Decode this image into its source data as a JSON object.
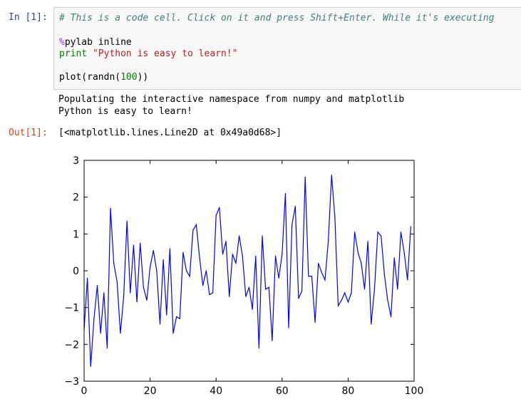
{
  "cell": {
    "in_prompt": "In [1]:",
    "code": {
      "comment": "# This is a code cell. Click on it and press Shift+Enter. While it's executing",
      "magic_percent": "%",
      "magic_rest": "pylab inline",
      "print_kw": "print",
      "print_str": "\"Python is easy to learn!\"",
      "plot_prefix": "plot(randn(",
      "plot_arg": "100",
      "plot_suffix": "))"
    },
    "stdout": [
      "Populating the interactive namespace from numpy and matplotlib",
      "Python is easy to learn!"
    ],
    "out_prompt": "Out[1]:",
    "out_repr": "[<matplotlib.lines.Line2D at 0x49a0d68>]"
  },
  "line_color": "#0000ff",
  "chart_data": {
    "type": "line",
    "xlim": [
      0,
      100
    ],
    "ylim": [
      -3,
      3
    ],
    "x_ticks": [
      "0",
      "20",
      "40",
      "60",
      "80",
      "100"
    ],
    "y_ticks": [
      "3",
      "2",
      "1",
      "0",
      "−1",
      "−2",
      "−3"
    ],
    "grid": false,
    "series": [
      {
        "values": [
          -1.6,
          -0.2,
          -2.6,
          -1.3,
          -0.4,
          -1.7,
          -0.6,
          -2.1,
          1.7,
          0.2,
          -0.3,
          -1.7,
          -0.7,
          1.35,
          -0.6,
          0.7,
          -0.85,
          0.75,
          -0.45,
          -0.8,
          0.1,
          0.55,
          0.0,
          -1.45,
          0.3,
          -1.2,
          0.6,
          -1.7,
          -1.25,
          -1.3,
          0.5,
          0.0,
          -0.15,
          1.1,
          1.25,
          0.35,
          -0.4,
          0.0,
          -0.65,
          -0.6,
          1.5,
          1.72,
          0.45,
          0.8,
          -0.7,
          0.45,
          0.2,
          0.95,
          0.4,
          -0.7,
          -0.45,
          -1.05,
          0.4,
          -2.1,
          0.95,
          -0.5,
          -0.45,
          -1.9,
          0.4,
          -0.2,
          0.45,
          2.1,
          -1.55,
          1.25,
          1.75,
          -0.75,
          -0.55,
          2.55,
          -0.15,
          -0.15,
          -1.4,
          0.2,
          -0.05,
          -0.25,
          0.8,
          2.6,
          1.45,
          -0.95,
          -0.8,
          -0.6,
          -0.85,
          -0.6,
          1.05,
          0.5,
          0.2,
          -0.5,
          0.8,
          -1.45,
          -0.5,
          1.05,
          0.95,
          -0.1,
          -0.8,
          -1.25,
          0.35,
          -0.5,
          1.05,
          0.5,
          -0.25,
          1.2
        ]
      }
    ]
  }
}
